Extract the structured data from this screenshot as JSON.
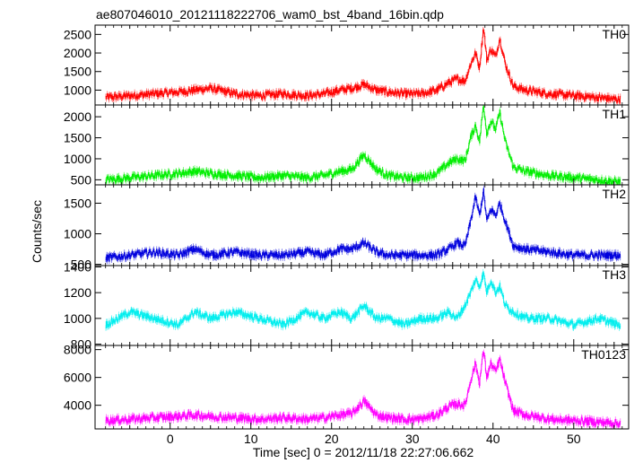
{
  "title": "ae807046010_20121118222706_wam0_bst_4band_16bin.qdp",
  "ylabel": "Counts/sec",
  "xlabel": "Time [sec] 0 = 2012/11/18 22:27:06.662",
  "chart_data": [
    {
      "type": "line",
      "name": "TH0",
      "color": "#ff0000",
      "xlim": [
        -9.3,
        56.8
      ],
      "ylim": [
        600,
        2750
      ],
      "yticks": [
        1000,
        1500,
        2000,
        2500
      ],
      "ytick_labels": [
        "1000",
        "1500",
        "2000",
        "2500"
      ],
      "x": [
        -8,
        -5,
        -2,
        1,
        3,
        5,
        8,
        11,
        14,
        17,
        19,
        21,
        22.5,
        24,
        25.5,
        27,
        29,
        31,
        33,
        34.5,
        35.5,
        36.5,
        37.2,
        37.8,
        38.3,
        38.8,
        39.2,
        39.7,
        40.3,
        40.8,
        41.5,
        42.5,
        44,
        47,
        50,
        53,
        55.5
      ],
      "y": [
        800,
        850,
        900,
        950,
        1000,
        1050,
        900,
        850,
        900,
        850,
        900,
        1000,
        1050,
        1150,
        1000,
        950,
        900,
        900,
        1000,
        1200,
        1300,
        1250,
        1700,
        2000,
        1600,
        2700,
        1800,
        2100,
        1900,
        2400,
        1700,
        1100,
        1000,
        900,
        850,
        800,
        750
      ]
    },
    {
      "type": "line",
      "name": "TH1",
      "color": "#00ee00",
      "xlim": [
        -9.3,
        56.8
      ],
      "ylim": [
        380,
        2280
      ],
      "yticks": [
        500,
        1000,
        1500,
        2000
      ],
      "ytick_labels": [
        "500",
        "1000",
        "1500",
        "2000"
      ],
      "x": [
        -8,
        -5,
        -2,
        1,
        3,
        5,
        8,
        11,
        14,
        17,
        19,
        21,
        22.5,
        24,
        25.5,
        27,
        29,
        31,
        33,
        34.5,
        35.5,
        36.5,
        37.2,
        37.8,
        38.3,
        38.8,
        39.2,
        39.7,
        40.3,
        40.8,
        41.5,
        42.5,
        44,
        47,
        50,
        53,
        55.5
      ],
      "y": [
        500,
        550,
        600,
        650,
        700,
        650,
        600,
        550,
        600,
        550,
        600,
        700,
        750,
        1100,
        750,
        600,
        550,
        550,
        650,
        900,
        1000,
        950,
        1500,
        1800,
        1400,
        2300,
        1600,
        1900,
        1700,
        2100,
        1400,
        800,
        700,
        600,
        550,
        500,
        450
      ]
    },
    {
      "type": "line",
      "name": "TH2",
      "color": "#0000dd",
      "xlim": [
        -9.3,
        56.8
      ],
      "ylim": [
        480,
        1800
      ],
      "yticks": [
        500,
        1000,
        1500
      ],
      "ytick_labels": [
        "500",
        "1000",
        "1500"
      ],
      "x": [
        -8,
        -5,
        -2,
        1,
        3,
        5,
        8,
        11,
        14,
        17,
        19,
        21,
        22.5,
        24,
        25.5,
        27,
        29,
        31,
        33,
        34.5,
        35.5,
        36.5,
        37.2,
        37.8,
        38.3,
        38.8,
        39.2,
        39.7,
        40.3,
        40.8,
        41.5,
        42.5,
        44,
        47,
        50,
        53,
        55.5
      ],
      "y": [
        600,
        650,
        700,
        650,
        750,
        650,
        700,
        650,
        650,
        700,
        650,
        750,
        750,
        850,
        700,
        650,
        650,
        650,
        650,
        750,
        850,
        800,
        1200,
        1600,
        1300,
        1700,
        1200,
        1400,
        1300,
        1500,
        1200,
        800,
        750,
        700,
        650,
        650,
        650
      ]
    },
    {
      "type": "line",
      "name": "TH3",
      "color": "#00eeee",
      "xlim": [
        -9.3,
        56.8
      ],
      "ylim": [
        790,
        1410
      ],
      "yticks": [
        800,
        1000,
        1200,
        1400
      ],
      "ytick_labels": [
        "800",
        "1000",
        "1200",
        "1400"
      ],
      "x": [
        -8,
        -5,
        -2,
        1,
        3,
        5,
        8,
        11,
        14,
        17,
        19,
        21,
        22.5,
        24,
        25.5,
        27,
        29,
        31,
        33,
        34.5,
        35.5,
        36.5,
        37.2,
        37.8,
        38.3,
        38.8,
        39.2,
        39.7,
        40.3,
        40.8,
        41.5,
        42.5,
        44,
        47,
        50,
        53,
        55.5
      ],
      "y": [
        950,
        1050,
        1000,
        950,
        1050,
        1000,
        1050,
        1000,
        950,
        1050,
        1000,
        1050,
        1000,
        1100,
        1000,
        1000,
        950,
        1000,
        1000,
        1050,
        1000,
        1100,
        1200,
        1300,
        1250,
        1350,
        1200,
        1300,
        1200,
        1250,
        1100,
        1050,
        1000,
        1000,
        950,
        1000,
        950
      ]
    },
    {
      "type": "line",
      "name": "TH0123",
      "color": "#ff00ff",
      "xlim": [
        -9.3,
        56.8
      ],
      "ylim": [
        2300,
        8300
      ],
      "yticks": [
        4000,
        6000,
        8000
      ],
      "ytick_labels": [
        "4000",
        "6000",
        "8000"
      ],
      "x": [
        -8,
        -5,
        -2,
        1,
        3,
        5,
        8,
        11,
        14,
        17,
        19,
        21,
        22.5,
        24,
        25.5,
        27,
        29,
        31,
        33,
        34.5,
        35.5,
        36.5,
        37.2,
        37.8,
        38.3,
        38.8,
        39.2,
        39.7,
        40.3,
        40.8,
        41.5,
        42.5,
        44,
        47,
        50,
        53,
        55.5
      ],
      "y": [
        2900,
        3000,
        3100,
        3200,
        3300,
        3200,
        3100,
        3000,
        3100,
        3000,
        3100,
        3300,
        3400,
        4300,
        3300,
        3100,
        3000,
        3000,
        3300,
        3900,
        4100,
        4000,
        5800,
        7000,
        5600,
        8000,
        6000,
        7000,
        6400,
        7300,
        5600,
        3600,
        3300,
        3000,
        2900,
        2800,
        2700
      ]
    }
  ],
  "xticks": [
    0,
    10,
    20,
    30,
    40,
    50
  ],
  "xtick_labels": [
    "0",
    "10",
    "20",
    "30",
    "40",
    "50"
  ]
}
